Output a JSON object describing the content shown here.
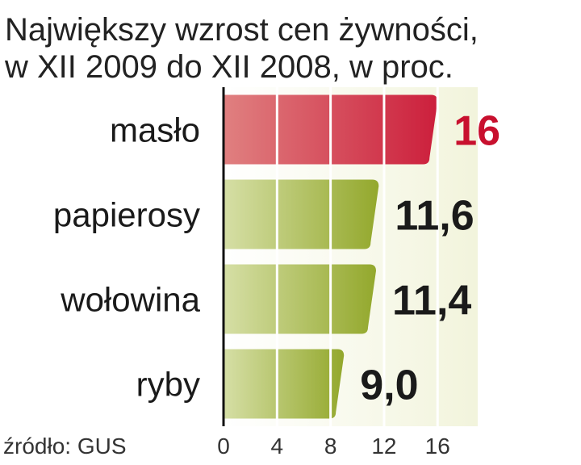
{
  "chart_data": {
    "type": "bar",
    "orientation": "horizontal",
    "title": "Największy wzrost cen żywności,",
    "subtitle": "w XII 2009 do XII 2008, w proc.",
    "categories": [
      "masło",
      "papierosy",
      "wołowina",
      "ryby"
    ],
    "values": [
      16,
      11.6,
      11.4,
      9.0
    ],
    "value_labels": [
      "16",
      "11,6",
      "11,4",
      "9,0"
    ],
    "xlim": [
      0,
      19
    ],
    "x_ticks": [
      0,
      4,
      8,
      12,
      16
    ],
    "x_tick_labels": [
      "0",
      "4",
      "8",
      "12",
      "16"
    ],
    "grid": true,
    "highlight_index": 0,
    "colors": {
      "highlight": "#cc1f3c",
      "highlight_light": "#e08080",
      "bar": "#93a82c",
      "bar_light": "#d6dfa6",
      "background": "#f2f4dc",
      "highlight_text": "#c8102e",
      "text": "#1a1a1a"
    }
  },
  "source": "źródło: GUS"
}
